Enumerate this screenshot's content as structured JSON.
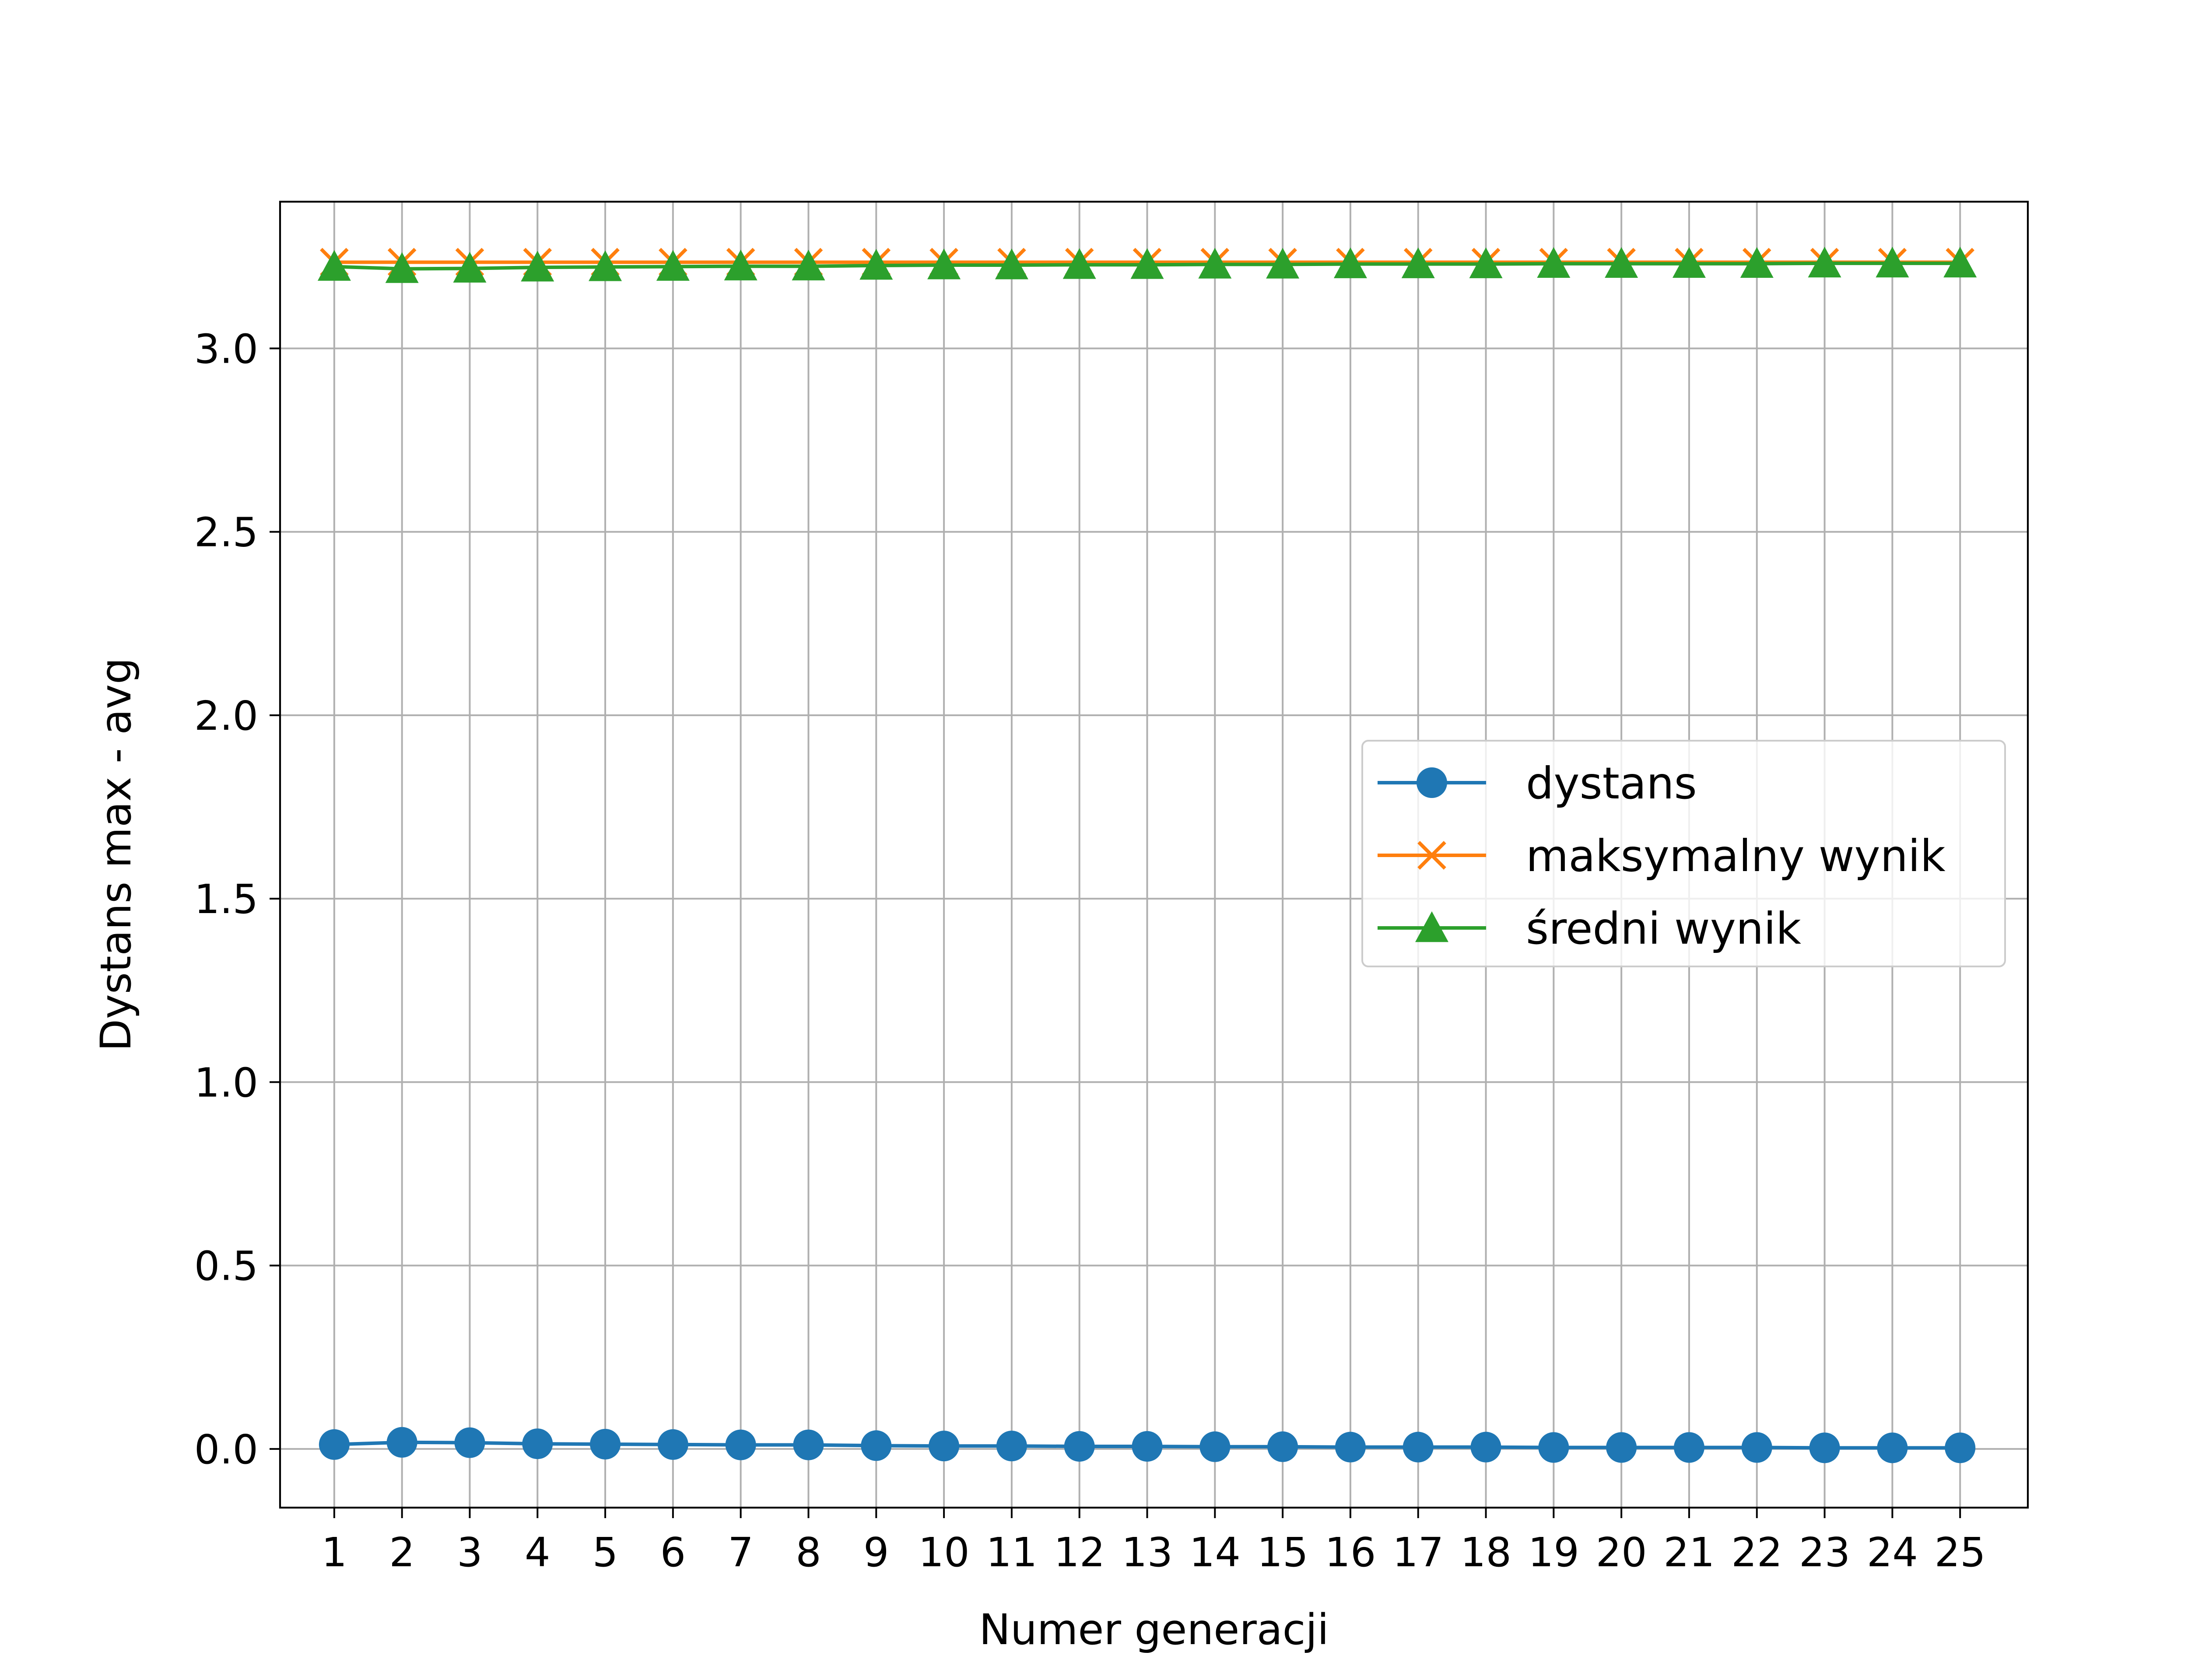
{
  "chart_data": {
    "type": "line",
    "title": "",
    "xlabel": "Numer generacji",
    "ylabel": "Dystans max - avg",
    "x": [
      1,
      2,
      3,
      4,
      5,
      6,
      7,
      8,
      9,
      10,
      11,
      12,
      13,
      14,
      15,
      16,
      17,
      18,
      19,
      20,
      21,
      22,
      23,
      24,
      25
    ],
    "x_tick_labels": [
      "1",
      "2",
      "3",
      "4",
      "5",
      "6",
      "7",
      "8",
      "9",
      "10",
      "11",
      "12",
      "13",
      "14",
      "15",
      "16",
      "17",
      "18",
      "19",
      "20",
      "21",
      "22",
      "23",
      "24",
      "25"
    ],
    "y_ticks": [
      0.0,
      0.5,
      1.0,
      1.5,
      2.0,
      2.5,
      3.0
    ],
    "y_tick_labels": [
      "0.0",
      "0.5",
      "1.0",
      "1.5",
      "2.0",
      "2.5",
      "3.0"
    ],
    "xlim": [
      0.2,
      26.0
    ],
    "ylim": [
      -0.16,
      3.4
    ],
    "grid": true,
    "legend_position": "center-right",
    "series": [
      {
        "name": "dystans",
        "color": "#1f77b4",
        "marker": "circle",
        "values": [
          0.012,
          0.018,
          0.017,
          0.014,
          0.013,
          0.012,
          0.011,
          0.011,
          0.009,
          0.008,
          0.008,
          0.007,
          0.007,
          0.006,
          0.006,
          0.005,
          0.005,
          0.005,
          0.004,
          0.004,
          0.004,
          0.004,
          0.003,
          0.003,
          0.003
        ]
      },
      {
        "name": "maksymalny wynik",
        "color": "#ff7f0e",
        "marker": "x",
        "values": [
          3.235,
          3.235,
          3.235,
          3.235,
          3.235,
          3.235,
          3.235,
          3.235,
          3.235,
          3.235,
          3.235,
          3.235,
          3.235,
          3.235,
          3.235,
          3.235,
          3.235,
          3.235,
          3.235,
          3.235,
          3.235,
          3.235,
          3.235,
          3.235,
          3.235
        ]
      },
      {
        "name": "średni wynik",
        "color": "#2ca02c",
        "marker": "triangle",
        "values": [
          3.223,
          3.217,
          3.218,
          3.221,
          3.222,
          3.223,
          3.224,
          3.224,
          3.226,
          3.227,
          3.227,
          3.228,
          3.228,
          3.229,
          3.229,
          3.23,
          3.23,
          3.23,
          3.231,
          3.231,
          3.231,
          3.231,
          3.232,
          3.232,
          3.232
        ]
      }
    ]
  }
}
